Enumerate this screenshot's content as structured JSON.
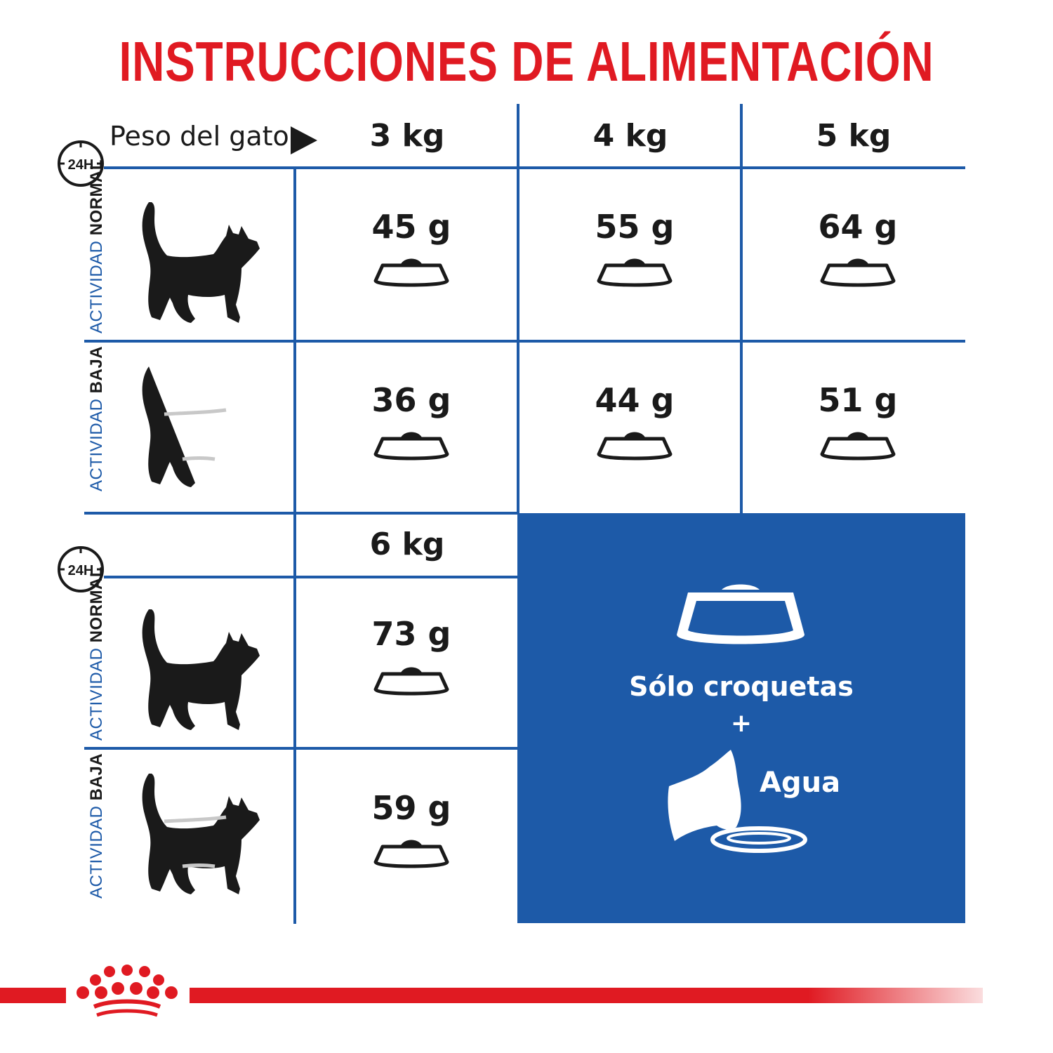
{
  "title": "INSTRUCCIONES DE ALIMENTACIÓN",
  "weight_label": "Peso del gato",
  "clock_label": "24H",
  "activity_word": "ACTIVIDAD",
  "activity_levels": {
    "normal": "NORMAL",
    "low": "BAJA"
  },
  "weights": [
    "3 kg",
    "4 kg",
    "5 kg",
    "6 kg"
  ],
  "grams": {
    "normal": [
      "45 g",
      "55 g",
      "64 g",
      "73 g"
    ],
    "low": [
      "36 g",
      "44 g",
      "51 g",
      "59 g"
    ]
  },
  "panel": {
    "dry_food": "Sólo croquetas",
    "plus": "+",
    "water": "Agua"
  },
  "colors": {
    "title_red": "#e01a22",
    "brand_blue": "#1d5aa8",
    "ink": "#1a1a1a"
  },
  "icons": [
    "clock-24h-icon",
    "play-arrow-icon",
    "cat-silhouette-icon",
    "bowl-icon",
    "water-bowl-icon",
    "crown-logo"
  ]
}
